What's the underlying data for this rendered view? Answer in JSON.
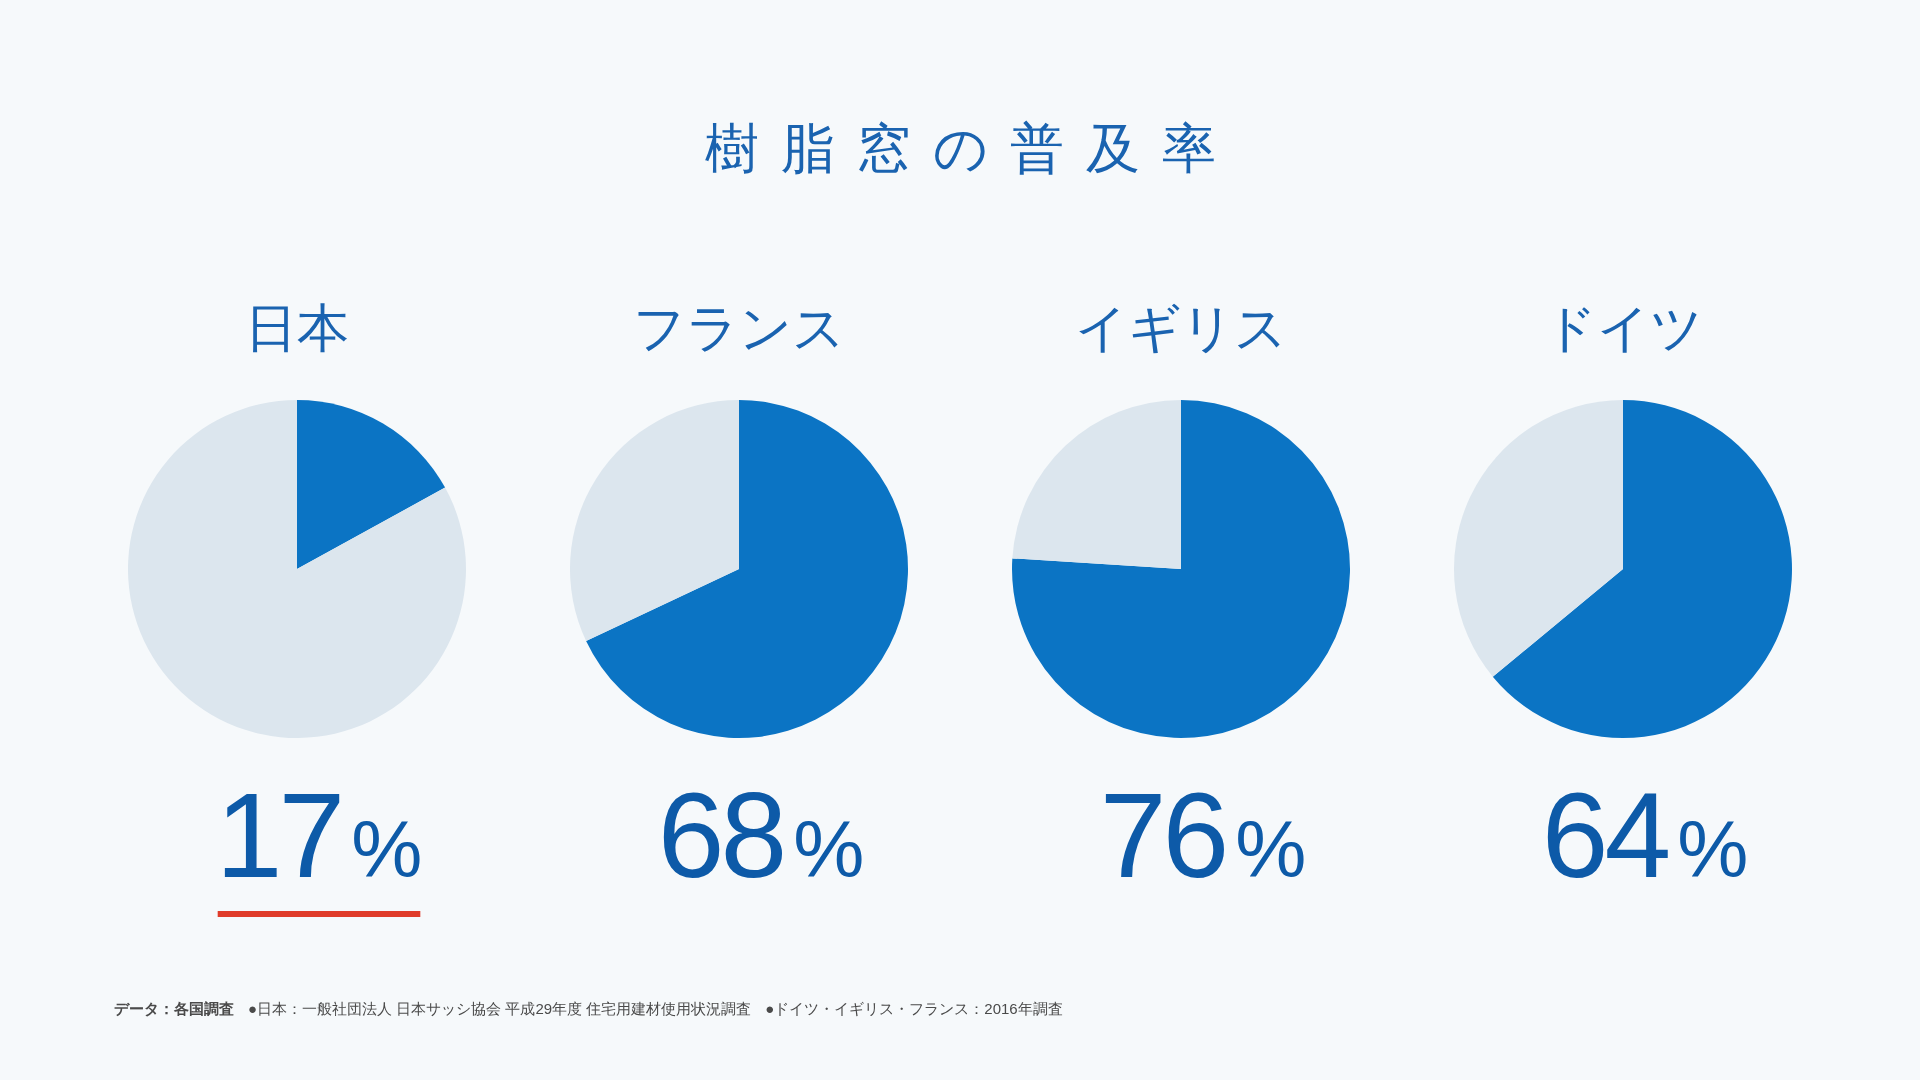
{
  "chart_data": [
    {
      "type": "other",
      "title": "樹脂窓の普及率"
    },
    {
      "type": "pie",
      "title": "日本",
      "categories": [
        null,
        null
      ],
      "values": [
        17,
        83
      ],
      "colors": [
        "#0b74c4",
        "#dce6ee"
      ],
      "annotations": [
        "17%"
      ]
    },
    {
      "type": "pie",
      "title": "フランス",
      "categories": [
        null,
        null
      ],
      "values": [
        68,
        32
      ],
      "colors": [
        "#0b74c4",
        "#dce6ee"
      ],
      "annotations": [
        "68%"
      ]
    },
    {
      "type": "pie",
      "title": "イギリス",
      "categories": [
        null,
        null
      ],
      "values": [
        76,
        24
      ],
      "colors": [
        "#0b74c4",
        "#dce6ee"
      ],
      "annotations": [
        "76%"
      ]
    },
    {
      "type": "pie",
      "title": "ドイツ",
      "categories": [
        null,
        null
      ],
      "values": [
        64,
        36
      ],
      "colors": [
        "#0b74c4",
        "#dce6ee"
      ],
      "annotations": [
        "64%"
      ]
    },
    {
      "type": "other",
      "annotations": [
        "データ：各国調査",
        "●日本：一般社団法人 日本サッシ協会 平成29年度 住宅用建材使用状況調査",
        "●ドイツ・イギリス・フランス：2016年調査"
      ]
    }
  ]
}
